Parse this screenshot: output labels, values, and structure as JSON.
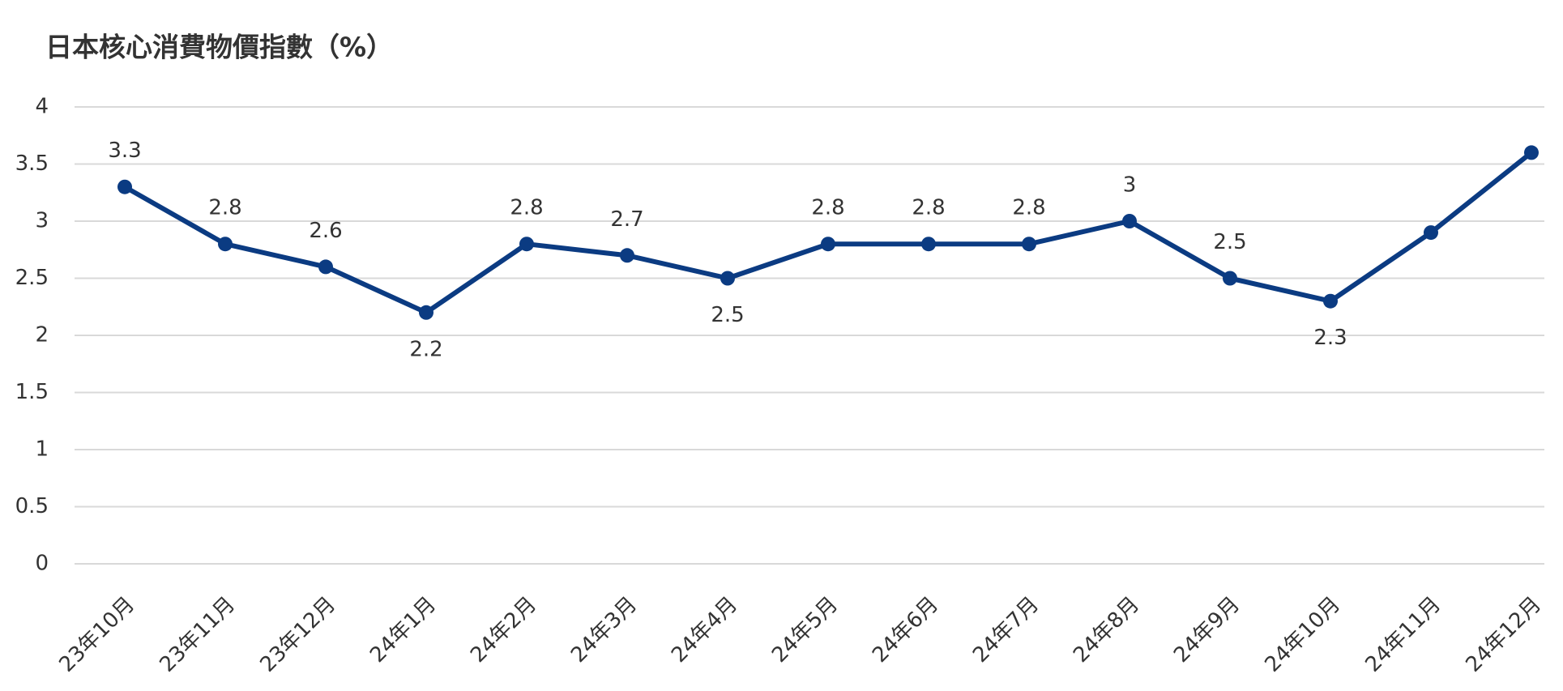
{
  "chart_data": {
    "type": "line",
    "title": "日本核心消費物價指數（%）",
    "categories": [
      "23年10月",
      "23年11月",
      "23年12月",
      "24年1月",
      "24年2月",
      "24年3月",
      "24年4月",
      "24年5月",
      "24年6月",
      "24年7月",
      "24年8月",
      "24年9月",
      "24年10月",
      "24年11月",
      "24年12月"
    ],
    "series": [
      {
        "color": "#0b3b82",
        "values": [
          3.3,
          2.8,
          2.6,
          2.2,
          2.8,
          2.7,
          2.5,
          2.8,
          2.8,
          2.8,
          3,
          2.5,
          2.3,
          2.9,
          3.6
        ],
        "value_labels": [
          "3.3",
          "2.8",
          "2.6",
          "2.2",
          "2.8",
          "2.7",
          "2.5",
          "2.8",
          "2.8",
          "2.8",
          "3",
          "2.5",
          "2.3",
          null,
          null
        ]
      }
    ],
    "ylim": [
      0,
      4
    ],
    "yticks": [
      0,
      0.5,
      1,
      1.5,
      2,
      2.5,
      3,
      3.5,
      4
    ],
    "grid": true
  }
}
